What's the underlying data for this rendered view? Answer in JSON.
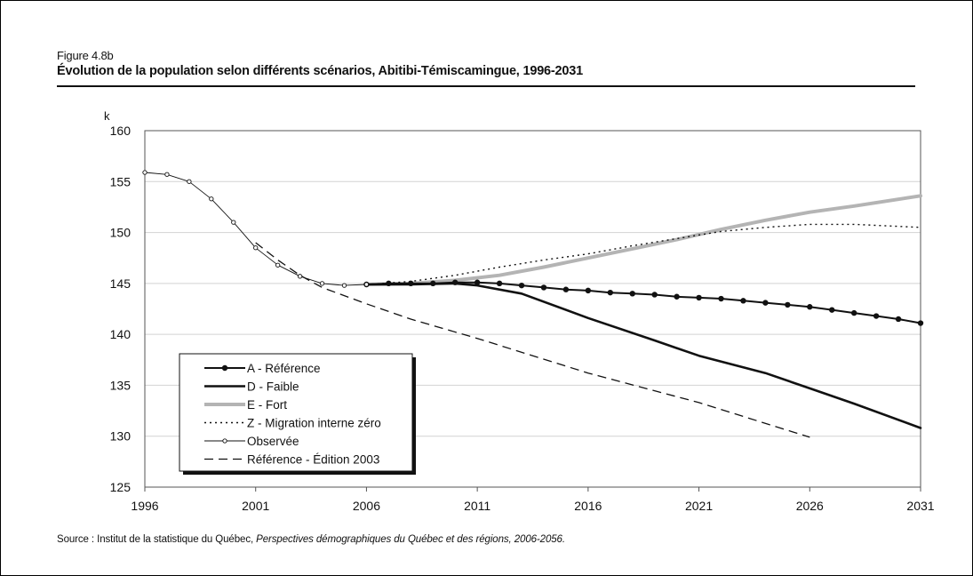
{
  "figure": {
    "label": "Figure 4.8b",
    "title": "Évolution de la population selon différents scénarios, Abitibi-Témiscamingue, 1996-2031",
    "source_prefix": "Source :  Institut de la statistique du Québec, ",
    "source_italic": "Perspectives démographiques du Québec et des régions, 2006-2056."
  },
  "chart_data": {
    "type": "line",
    "ylabel": "k",
    "xlim": [
      1996,
      2031
    ],
    "ylim": [
      125,
      160
    ],
    "x_ticks": [
      1996,
      2001,
      2006,
      2011,
      2016,
      2021,
      2026,
      2031
    ],
    "y_ticks": [
      125,
      130,
      135,
      140,
      145,
      150,
      155,
      160
    ],
    "grid": true,
    "legend_position": "bottom-left",
    "series": [
      {
        "name": "A - Référence",
        "style": "solid-dots",
        "color": "#111111",
        "x": [
          2006,
          2007,
          2008,
          2009,
          2010,
          2011,
          2012,
          2013,
          2014,
          2015,
          2016,
          2017,
          2018,
          2019,
          2020,
          2021,
          2022,
          2023,
          2024,
          2025,
          2026,
          2027,
          2028,
          2029,
          2030,
          2031
        ],
        "y": [
          144.9,
          145.0,
          145.0,
          145.0,
          145.1,
          145.1,
          145.0,
          144.8,
          144.6,
          144.4,
          144.3,
          144.1,
          144.0,
          143.9,
          143.7,
          143.6,
          143.5,
          143.3,
          143.1,
          142.9,
          142.7,
          142.4,
          142.1,
          141.8,
          141.5,
          141.1
        ]
      },
      {
        "name": "D - Faible",
        "style": "solid-thick",
        "color": "#111111",
        "x": [
          2006,
          2008,
          2010,
          2011,
          2013,
          2016,
          2019,
          2021,
          2024,
          2026,
          2028,
          2031
        ],
        "y": [
          144.9,
          144.9,
          145.0,
          144.8,
          144.0,
          141.6,
          139.4,
          137.9,
          136.2,
          134.7,
          133.2,
          130.8
        ]
      },
      {
        "name": "E - Fort",
        "style": "solid-grey",
        "color": "#b4b4b4",
        "x": [
          2006,
          2008,
          2010,
          2012,
          2014,
          2016,
          2018,
          2020,
          2022,
          2024,
          2026,
          2028,
          2031
        ],
        "y": [
          144.9,
          145.0,
          145.3,
          145.8,
          146.6,
          147.5,
          148.4,
          149.3,
          150.3,
          151.2,
          152.0,
          152.6,
          153.6
        ]
      },
      {
        "name": "Z - Migration interne zéro",
        "style": "dotted",
        "color": "#111111",
        "x": [
          2006,
          2008,
          2010,
          2012,
          2014,
          2016,
          2018,
          2020,
          2022,
          2024,
          2026,
          2028,
          2031
        ],
        "y": [
          144.9,
          145.2,
          145.8,
          146.6,
          147.3,
          147.9,
          148.7,
          149.4,
          150.1,
          150.5,
          150.8,
          150.8,
          150.5
        ]
      },
      {
        "name": "Observée",
        "style": "thin-circles",
        "color": "#111111",
        "x": [
          1996,
          1997,
          1998,
          1999,
          2000,
          2001,
          2002,
          2003,
          2004,
          2005,
          2006
        ],
        "y": [
          155.9,
          155.7,
          155.0,
          153.3,
          151.0,
          148.5,
          146.8,
          145.7,
          145.0,
          144.8,
          144.9
        ]
      },
      {
        "name": "Référence - Édition 2003",
        "style": "dashed",
        "color": "#111111",
        "x": [
          2001,
          2002,
          2003,
          2004,
          2006,
          2008,
          2011,
          2016,
          2021,
          2026
        ],
        "y": [
          149.0,
          147.3,
          145.8,
          144.6,
          143.0,
          141.5,
          139.6,
          136.2,
          133.3,
          129.9
        ]
      }
    ]
  }
}
